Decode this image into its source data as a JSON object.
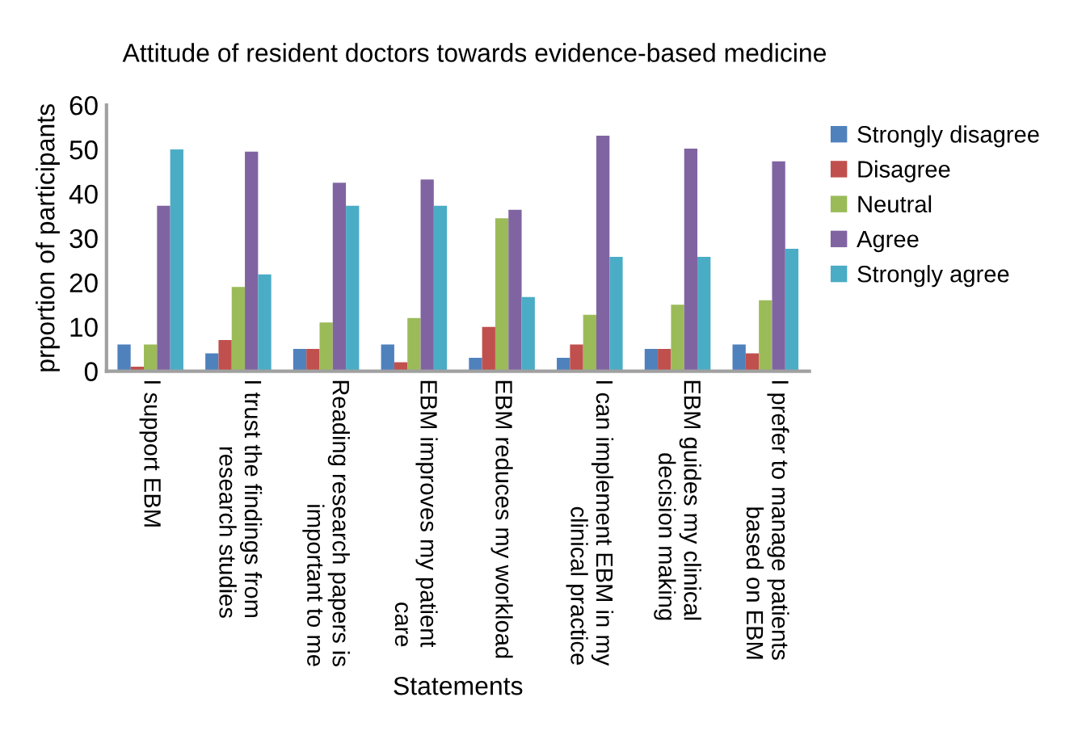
{
  "chart_data": {
    "type": "bar",
    "title": "Attitude of resident doctors towards evidence-based medicine",
    "xlabel": "Statements",
    "ylabel": "prportion of participants",
    "categories": [
      "I support EBM",
      "I trust the findings from\nresearch studies",
      "Reading research papers is\nimportant to me",
      "EBM improves my patient\ncare",
      "EBM reduces my workload",
      "I can implement EBM in my\nclinical practice",
      "EBM guides my clinical\ndecision making",
      "I prefer to manage patients\nbased on EBM"
    ],
    "series": [
      {
        "name": "Strongly disagree",
        "color": "#4f81bd",
        "values": [
          6,
          4,
          5,
          6,
          3,
          3,
          5,
          6
        ]
      },
      {
        "name": "Disagree",
        "color": "#c0504d",
        "values": [
          1,
          7,
          5,
          2,
          10,
          6,
          5,
          4
        ]
      },
      {
        "name": "Neutral",
        "color": "#9bbb59",
        "values": [
          6,
          19,
          11,
          12,
          34.5,
          12.7,
          15,
          16
        ]
      },
      {
        "name": "Agree",
        "color": "#8064a2",
        "values": [
          37.3,
          49.5,
          42.5,
          43.2,
          36.4,
          53.1,
          50.2,
          47.3
        ]
      },
      {
        "name": "Strongly agree",
        "color": "#4bacc6",
        "values": [
          50,
          21.8,
          37.3,
          37.3,
          16.7,
          25.8,
          25.8,
          27.6
        ]
      }
    ],
    "ylim": [
      0,
      60
    ],
    "yticks": [
      0,
      10,
      20,
      30,
      40,
      50,
      60
    ],
    "grid": false,
    "legend": "right"
  }
}
